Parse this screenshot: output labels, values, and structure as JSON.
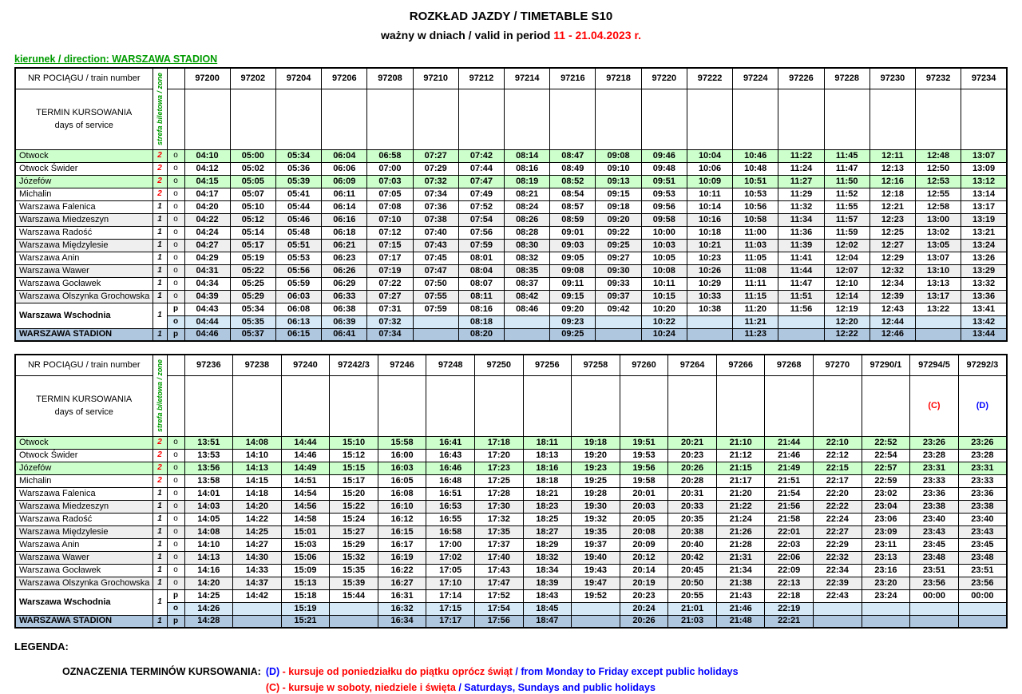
{
  "title": "ROZKŁAD JAZDY / TIMETABLE S10",
  "subtitle_prefix": "ważny w dniach / valid in period ",
  "subtitle_date": "11 - 21.04.2023 r.",
  "direction_label": "kierunek / direction: WARSZAWA STADION",
  "header": {
    "train_number_label": "NR POCIĄGU / train number",
    "zone_label": "strefa biletowa / zone",
    "days_label_line1": "TERMIN KURSOWANIA",
    "days_label_line2": "days of service"
  },
  "colors": {
    "direction_green": "#009b00",
    "date_red": "#ff0000",
    "zone2_red": "#ff0000",
    "row_green": "#ccffcc",
    "row_gray": "#efefef",
    "row_wschodnia_o_blue": "#d6e9f7",
    "row_stadion_blue": "#b0c7e0"
  },
  "day_colors": {
    "(C)": "#ff0000",
    "(D)": "#0000ff"
  },
  "tables": [
    {
      "trains": [
        "97200",
        "97202",
        "97204",
        "97206",
        "97208",
        "97210",
        "97212",
        "97214",
        "97216",
        "97218",
        "97220",
        "97222",
        "97224",
        "97226",
        "97228",
        "97230",
        "97232",
        "97234"
      ],
      "days": [
        "",
        "",
        "",
        "",
        "",
        "",
        "",
        "",
        "",
        "",
        "",
        "",
        "",
        "",
        "",
        "",
        "",
        ""
      ],
      "rows": [
        {
          "station": "Otwock",
          "zone": "2",
          "op": "o",
          "cls": "green",
          "times": [
            "04:10",
            "05:00",
            "05:34",
            "06:04",
            "06:58",
            "07:27",
            "07:42",
            "08:14",
            "08:47",
            "09:08",
            "09:46",
            "10:04",
            "10:46",
            "11:22",
            "11:45",
            "12:11",
            "12:48",
            "13:07"
          ]
        },
        {
          "station": "Otwock Świder",
          "zone": "2",
          "op": "o",
          "cls": "",
          "times": [
            "04:12",
            "05:02",
            "05:36",
            "06:06",
            "07:00",
            "07:29",
            "07:44",
            "08:16",
            "08:49",
            "09:10",
            "09:48",
            "10:06",
            "10:48",
            "11:24",
            "11:47",
            "12:13",
            "12:50",
            "13:09"
          ]
        },
        {
          "station": "Józefów",
          "zone": "2",
          "op": "o",
          "cls": "green",
          "times": [
            "04:15",
            "05:05",
            "05:39",
            "06:09",
            "07:03",
            "07:32",
            "07:47",
            "08:19",
            "08:52",
            "09:13",
            "09:51",
            "10:09",
            "10:51",
            "11:27",
            "11:50",
            "12:16",
            "12:53",
            "13:12"
          ]
        },
        {
          "station": "Michalin",
          "zone": "2",
          "op": "o",
          "cls": "",
          "times": [
            "04:17",
            "05:07",
            "05:41",
            "06:11",
            "07:05",
            "07:34",
            "07:49",
            "08:21",
            "08:54",
            "09:15",
            "09:53",
            "10:11",
            "10:53",
            "11:29",
            "11:52",
            "12:18",
            "12:55",
            "13:14"
          ]
        },
        {
          "station": "Warszawa Falenica",
          "zone": "1",
          "op": "o",
          "cls": "",
          "times": [
            "04:20",
            "05:10",
            "05:44",
            "06:14",
            "07:08",
            "07:36",
            "07:52",
            "08:24",
            "08:57",
            "09:18",
            "09:56",
            "10:14",
            "10:56",
            "11:32",
            "11:55",
            "12:21",
            "12:58",
            "13:17"
          ]
        },
        {
          "station": "Warszawa Miedzeszyn",
          "zone": "1",
          "op": "o",
          "cls": "gray",
          "times": [
            "04:22",
            "05:12",
            "05:46",
            "06:16",
            "07:10",
            "07:38",
            "07:54",
            "08:26",
            "08:59",
            "09:20",
            "09:58",
            "10:16",
            "10:58",
            "11:34",
            "11:57",
            "12:23",
            "13:00",
            "13:19"
          ]
        },
        {
          "station": "Warszawa Radość",
          "zone": "1",
          "op": "o",
          "cls": "",
          "times": [
            "04:24",
            "05:14",
            "05:48",
            "06:18",
            "07:12",
            "07:40",
            "07:56",
            "08:28",
            "09:01",
            "09:22",
            "10:00",
            "10:18",
            "11:00",
            "11:36",
            "11:59",
            "12:25",
            "13:02",
            "13:21"
          ]
        },
        {
          "station": "Warszawa Międzylesie",
          "zone": "1",
          "op": "o",
          "cls": "gray",
          "times": [
            "04:27",
            "05:17",
            "05:51",
            "06:21",
            "07:15",
            "07:43",
            "07:59",
            "08:30",
            "09:03",
            "09:25",
            "10:03",
            "10:21",
            "11:03",
            "11:39",
            "12:02",
            "12:27",
            "13:05",
            "13:24"
          ]
        },
        {
          "station": "Warszawa Anin",
          "zone": "1",
          "op": "o",
          "cls": "",
          "times": [
            "04:29",
            "05:19",
            "05:53",
            "06:23",
            "07:17",
            "07:45",
            "08:01",
            "08:32",
            "09:05",
            "09:27",
            "10:05",
            "10:23",
            "11:05",
            "11:41",
            "12:04",
            "12:29",
            "13:07",
            "13:26"
          ]
        },
        {
          "station": "Warszawa Wawer",
          "zone": "1",
          "op": "o",
          "cls": "gray",
          "times": [
            "04:31",
            "05:22",
            "05:56",
            "06:26",
            "07:19",
            "07:47",
            "08:04",
            "08:35",
            "09:08",
            "09:30",
            "10:08",
            "10:26",
            "11:08",
            "11:44",
            "12:07",
            "12:32",
            "13:10",
            "13:29"
          ]
        },
        {
          "station": "Warszawa Gocławek",
          "zone": "1",
          "op": "o",
          "cls": "",
          "times": [
            "04:34",
            "05:25",
            "05:59",
            "06:29",
            "07:22",
            "07:50",
            "08:07",
            "08:37",
            "09:11",
            "09:33",
            "10:11",
            "10:29",
            "11:11",
            "11:47",
            "12:10",
            "12:34",
            "13:13",
            "13:32"
          ]
        },
        {
          "station": "Warszawa Olszynka Grochowska",
          "zone": "1",
          "op": "o",
          "cls": "gray",
          "times": [
            "04:39",
            "05:29",
            "06:03",
            "06:33",
            "07:27",
            "07:55",
            "08:11",
            "08:42",
            "09:15",
            "09:37",
            "10:15",
            "10:33",
            "11:15",
            "11:51",
            "12:14",
            "12:39",
            "13:17",
            "13:36"
          ]
        },
        {
          "station": "Warszawa Wschodnia",
          "zone": "1",
          "op": "p",
          "cls": "wsch-p",
          "rowspan": 2,
          "times": [
            "04:43",
            "05:34",
            "06:08",
            "06:38",
            "07:31",
            "07:59",
            "08:16",
            "08:46",
            "09:20",
            "09:42",
            "10:20",
            "10:38",
            "11:20",
            "11:56",
            "12:19",
            "12:43",
            "13:22",
            "13:41"
          ]
        },
        {
          "cont": true,
          "op": "o",
          "cls": "wsch-o",
          "times": [
            "04:44",
            "05:35",
            "06:13",
            "06:39",
            "07:32",
            "",
            "08:18",
            "",
            "09:23",
            "",
            "10:22",
            "",
            "11:21",
            "",
            "12:20",
            "12:44",
            "",
            "13:42"
          ]
        },
        {
          "station": "WARSZAWA STADION",
          "zone": "1",
          "op": "p",
          "cls": "stadion",
          "times": [
            "04:46",
            "05:37",
            "06:15",
            "06:41",
            "07:34",
            "",
            "08:20",
            "",
            "09:25",
            "",
            "10:24",
            "",
            "11:23",
            "",
            "12:22",
            "12:46",
            "",
            "13:44"
          ]
        }
      ]
    },
    {
      "trains": [
        "97236",
        "97238",
        "97240",
        "97242/3",
        "97246",
        "97248",
        "97250",
        "97256",
        "97258",
        "97260",
        "97264",
        "97266",
        "97268",
        "97270",
        "97290/1",
        "97294/5",
        "97292/3"
      ],
      "days": [
        "",
        "",
        "",
        "",
        "",
        "",
        "",
        "",
        "",
        "",
        "",
        "",
        "",
        "",
        "",
        "(C)",
        "(D)"
      ],
      "rows": [
        {
          "station": "Otwock",
          "zone": "2",
          "op": "o",
          "cls": "green",
          "times": [
            "13:51",
            "14:08",
            "14:44",
            "15:10",
            "15:58",
            "16:41",
            "17:18",
            "18:11",
            "19:18",
            "19:51",
            "20:21",
            "21:10",
            "21:44",
            "22:10",
            "22:52",
            "23:26",
            "23:26"
          ]
        },
        {
          "station": "Otwock Świder",
          "zone": "2",
          "op": "o",
          "cls": "",
          "times": [
            "13:53",
            "14:10",
            "14:46",
            "15:12",
            "16:00",
            "16:43",
            "17:20",
            "18:13",
            "19:20",
            "19:53",
            "20:23",
            "21:12",
            "21:46",
            "22:12",
            "22:54",
            "23:28",
            "23:28"
          ]
        },
        {
          "station": "Józefów",
          "zone": "2",
          "op": "o",
          "cls": "green",
          "times": [
            "13:56",
            "14:13",
            "14:49",
            "15:15",
            "16:03",
            "16:46",
            "17:23",
            "18:16",
            "19:23",
            "19:56",
            "20:26",
            "21:15",
            "21:49",
            "22:15",
            "22:57",
            "23:31",
            "23:31"
          ]
        },
        {
          "station": "Michalin",
          "zone": "2",
          "op": "o",
          "cls": "",
          "times": [
            "13:58",
            "14:15",
            "14:51",
            "15:17",
            "16:05",
            "16:48",
            "17:25",
            "18:18",
            "19:25",
            "19:58",
            "20:28",
            "21:17",
            "21:51",
            "22:17",
            "22:59",
            "23:33",
            "23:33"
          ]
        },
        {
          "station": "Warszawa Falenica",
          "zone": "1",
          "op": "o",
          "cls": "",
          "times": [
            "14:01",
            "14:18",
            "14:54",
            "15:20",
            "16:08",
            "16:51",
            "17:28",
            "18:21",
            "19:28",
            "20:01",
            "20:31",
            "21:20",
            "21:54",
            "22:20",
            "23:02",
            "23:36",
            "23:36"
          ]
        },
        {
          "station": "Warszawa Miedzeszyn",
          "zone": "1",
          "op": "o",
          "cls": "gray",
          "times": [
            "14:03",
            "14:20",
            "14:56",
            "15:22",
            "16:10",
            "16:53",
            "17:30",
            "18:23",
            "19:30",
            "20:03",
            "20:33",
            "21:22",
            "21:56",
            "22:22",
            "23:04",
            "23:38",
            "23:38"
          ]
        },
        {
          "station": "Warszawa Radość",
          "zone": "1",
          "op": "o",
          "cls": "",
          "times": [
            "14:05",
            "14:22",
            "14:58",
            "15:24",
            "16:12",
            "16:55",
            "17:32",
            "18:25",
            "19:32",
            "20:05",
            "20:35",
            "21:24",
            "21:58",
            "22:24",
            "23:06",
            "23:40",
            "23:40"
          ]
        },
        {
          "station": "Warszawa Międzylesie",
          "zone": "1",
          "op": "o",
          "cls": "gray",
          "times": [
            "14:08",
            "14:25",
            "15:01",
            "15:27",
            "16:15",
            "16:58",
            "17:35",
            "18:27",
            "19:35",
            "20:08",
            "20:38",
            "21:26",
            "22:01",
            "22:27",
            "23:09",
            "23:43",
            "23:43"
          ]
        },
        {
          "station": "Warszawa Anin",
          "zone": "1",
          "op": "o",
          "cls": "",
          "times": [
            "14:10",
            "14:27",
            "15:03",
            "15:29",
            "16:17",
            "17:00",
            "17:37",
            "18:29",
            "19:37",
            "20:09",
            "20:40",
            "21:28",
            "22:03",
            "22:29",
            "23:11",
            "23:45",
            "23:45"
          ]
        },
        {
          "station": "Warszawa Wawer",
          "zone": "1",
          "op": "o",
          "cls": "gray",
          "times": [
            "14:13",
            "14:30",
            "15:06",
            "15:32",
            "16:19",
            "17:02",
            "17:40",
            "18:32",
            "19:40",
            "20:12",
            "20:42",
            "21:31",
            "22:06",
            "22:32",
            "23:13",
            "23:48",
            "23:48"
          ]
        },
        {
          "station": "Warszawa Gocławek",
          "zone": "1",
          "op": "o",
          "cls": "",
          "times": [
            "14:16",
            "14:33",
            "15:09",
            "15:35",
            "16:22",
            "17:05",
            "17:43",
            "18:34",
            "19:43",
            "20:14",
            "20:45",
            "21:34",
            "22:09",
            "22:34",
            "23:16",
            "23:51",
            "23:51"
          ]
        },
        {
          "station": "Warszawa Olszynka Grochowska",
          "zone": "1",
          "op": "o",
          "cls": "gray",
          "times": [
            "14:20",
            "14:37",
            "15:13",
            "15:39",
            "16:27",
            "17:10",
            "17:47",
            "18:39",
            "19:47",
            "20:19",
            "20:50",
            "21:38",
            "22:13",
            "22:39",
            "23:20",
            "23:56",
            "23:56"
          ]
        },
        {
          "station": "Warszawa Wschodnia",
          "zone": "1",
          "op": "p",
          "cls": "wsch-p",
          "rowspan": 2,
          "times": [
            "14:25",
            "14:42",
            "15:18",
            "15:44",
            "16:31",
            "17:14",
            "17:52",
            "18:43",
            "19:52",
            "20:23",
            "20:55",
            "21:43",
            "22:18",
            "22:43",
            "23:24",
            "00:00",
            "00:00"
          ]
        },
        {
          "cont": true,
          "op": "o",
          "cls": "wsch-o",
          "times": [
            "14:26",
            "",
            "15:19",
            "",
            "16:32",
            "17:15",
            "17:54",
            "18:45",
            "",
            "20:24",
            "21:01",
            "21:46",
            "22:19",
            "",
            "",
            "",
            ""
          ]
        },
        {
          "station": "WARSZAWA STADION",
          "zone": "1",
          "op": "p",
          "cls": "stadion",
          "times": [
            "14:28",
            "",
            "15:21",
            "",
            "16:34",
            "17:17",
            "17:56",
            "18:47",
            "",
            "20:26",
            "21:03",
            "21:48",
            "22:21",
            "",
            "",
            "",
            ""
          ]
        }
      ]
    }
  ],
  "legend": {
    "title": "LEGENDA:",
    "heading": "OZNACZENIA TERMINÓW KURSOWANIA:",
    "lines": [
      {
        "marker": "(D)",
        "marker_color": "#0000ff",
        "pl": " - kursuje od poniedziałku do piątku oprócz świąt ",
        "pl_color": "#ff0000",
        "en": "/ from Monday to Friday except public holidays",
        "en_color": "#0000ff"
      },
      {
        "marker": "(C)",
        "marker_color": "#ff0000",
        "pl": " - kursuje w soboty, niedziele i święta ",
        "pl_color": "#ff0000",
        "en": "/ Saturdays, Sundays and public holidays",
        "en_color": "#0000ff"
      }
    ]
  }
}
